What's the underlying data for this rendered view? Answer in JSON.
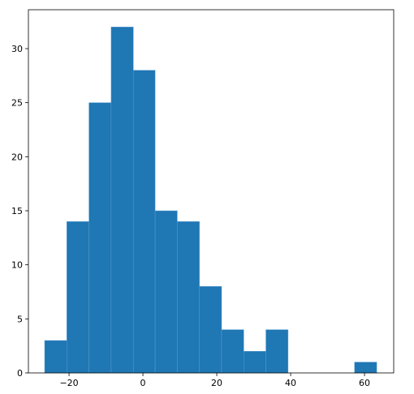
{
  "chart_data": {
    "type": "histogram",
    "bins": [
      -26.6,
      -20.6,
      -14.6,
      -8.6,
      -2.6,
      3.3,
      9.3,
      15.3,
      21.3,
      27.3,
      33.3,
      39.3,
      45.3,
      51.3,
      57.3,
      63.3
    ],
    "values": [
      3,
      14,
      25,
      32,
      28,
      15,
      14,
      8,
      4,
      2,
      4,
      0,
      0,
      0,
      1
    ],
    "color": "#1f77b4",
    "xlim": [
      -31,
      67.9
    ],
    "ylim": [
      0,
      33.6
    ],
    "xticks": [
      {
        "value": -20,
        "label": "−20"
      },
      0,
      20,
      40,
      60
    ],
    "yticks": [
      0,
      5,
      10,
      15,
      20,
      25,
      30
    ]
  }
}
